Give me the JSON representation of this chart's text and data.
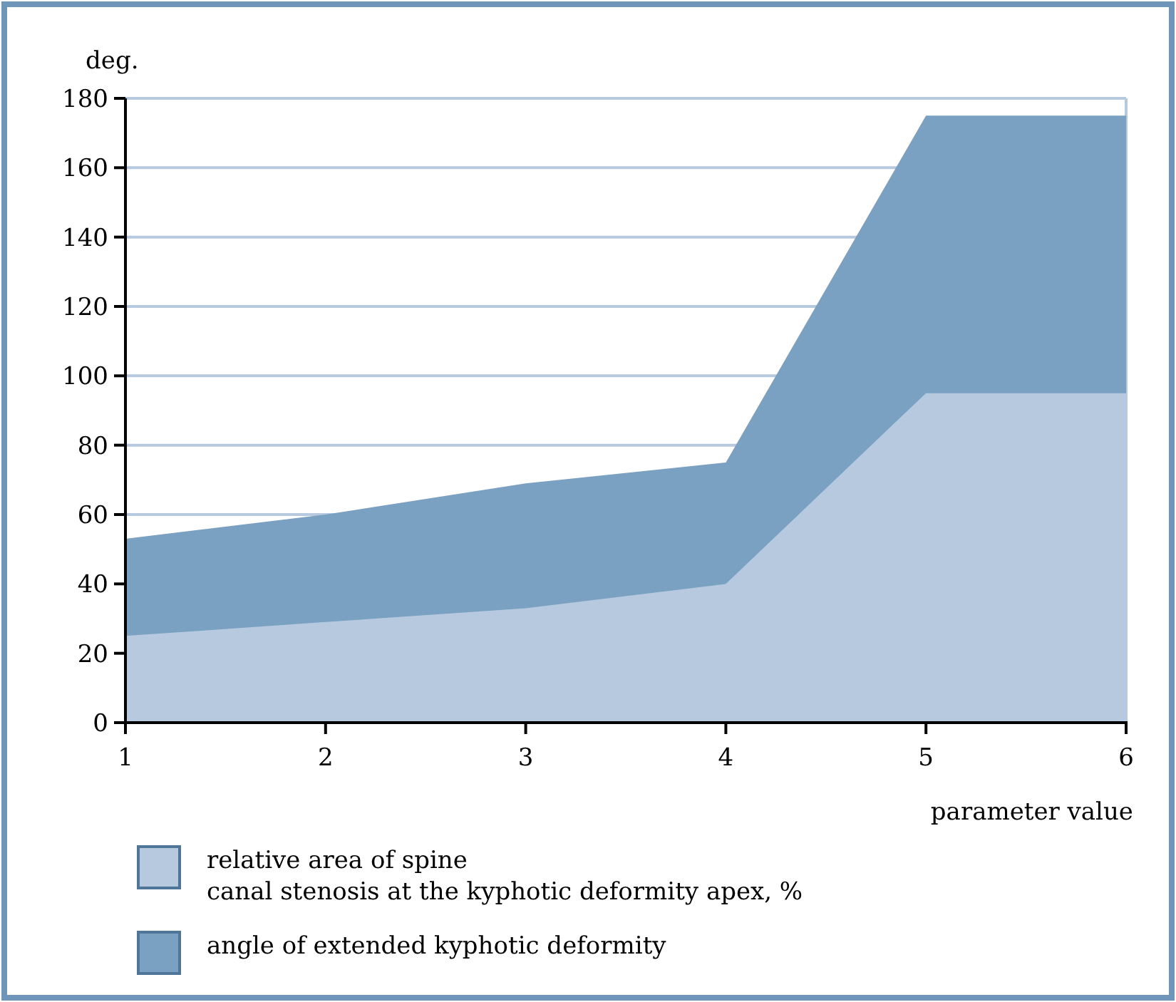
{
  "chart_data": {
    "type": "area",
    "xlabel": "parameter value",
    "ylabel": "deg.",
    "x": [
      1,
      2,
      3,
      4,
      5,
      6
    ],
    "xlim": [
      1,
      6
    ],
    "xticks": [
      1,
      2,
      3,
      4,
      5,
      6
    ],
    "ylim": [
      0,
      180
    ],
    "yticks": [
      0,
      20,
      40,
      60,
      80,
      100,
      120,
      140,
      160,
      180
    ],
    "grid": "y",
    "legend": "bottom",
    "series": [
      {
        "name": "angle of extended kyphotic deformity",
        "color": "#7aa1c2",
        "values": [
          53,
          60,
          69,
          75,
          175,
          175
        ]
      },
      {
        "name": "relative area of spine\ncanal stenosis at the kyphotic deformity apex, %",
        "color": "#b7c9de",
        "values": [
          25,
          29,
          33,
          40,
          95,
          95
        ]
      }
    ]
  }
}
